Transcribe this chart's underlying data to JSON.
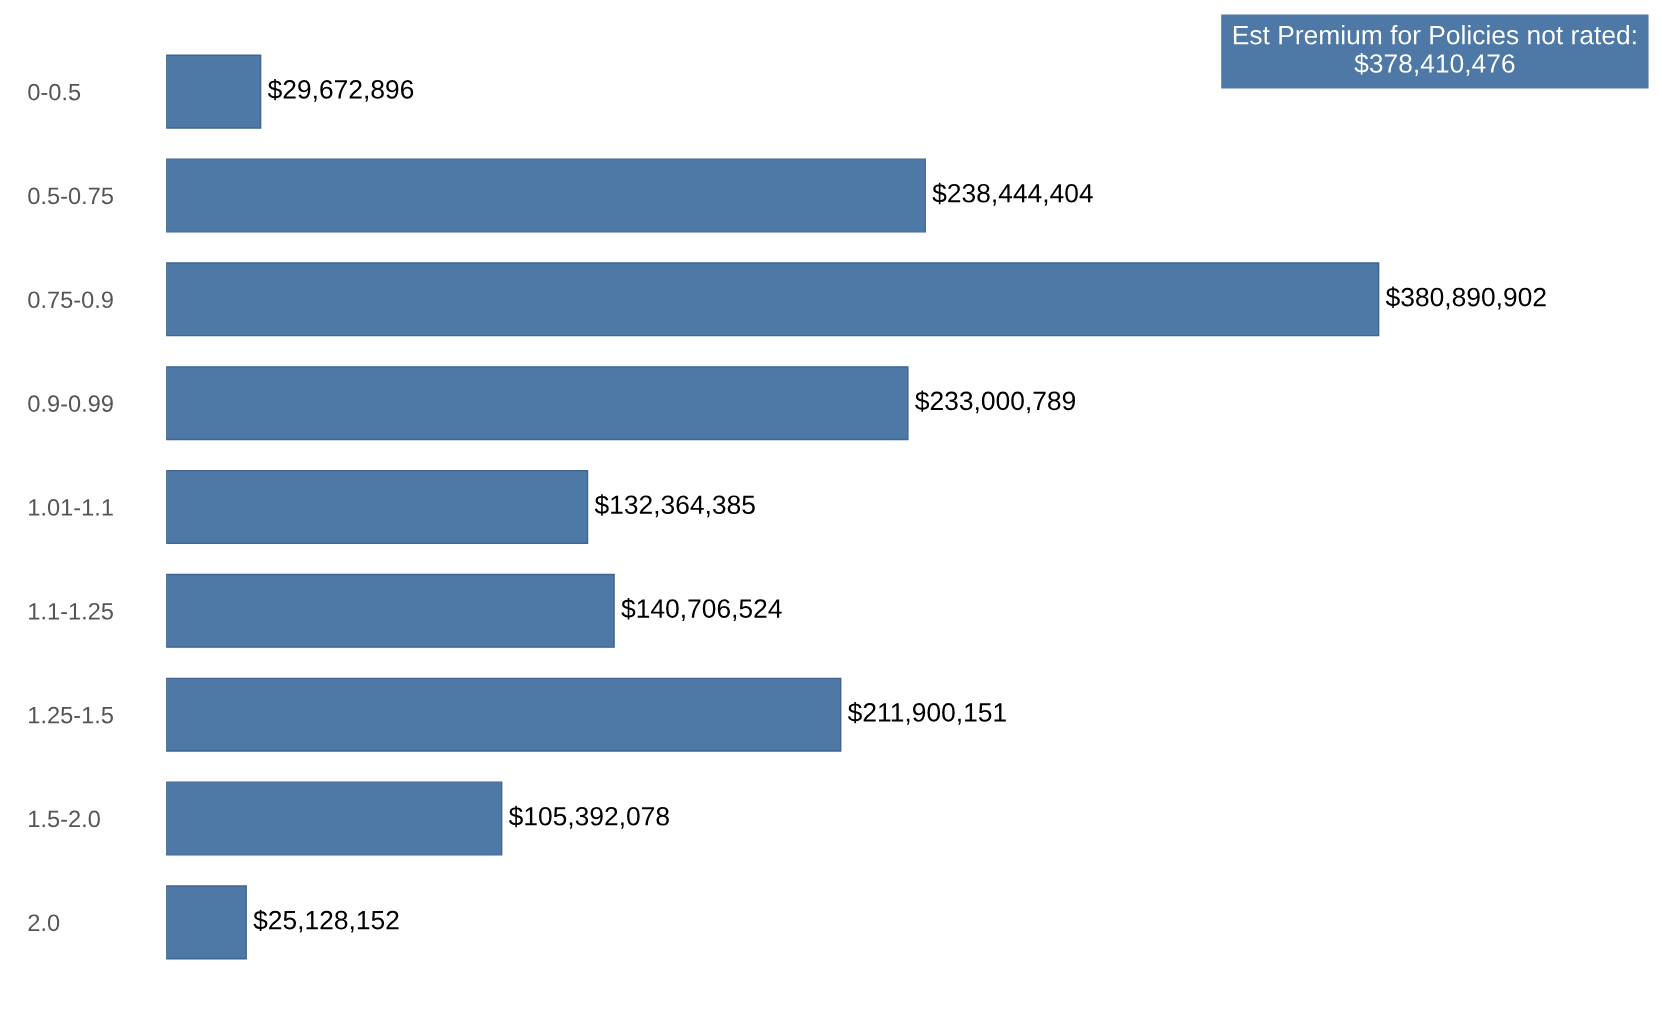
{
  "chart_data": {
    "type": "bar",
    "orientation": "horizontal",
    "categories": [
      "0-0.5",
      "0.5-0.75",
      "0.75-0.9",
      "0.9-0.99",
      "1.01-1.1",
      "1.1-1.25",
      "1.25-1.5",
      "1.5-2.0",
      "2.0"
    ],
    "values": [
      29672896,
      238444404,
      380890902,
      233000789,
      132364385,
      140706524,
      211900151,
      105392078,
      25128152
    ],
    "value_labels": [
      "$29,672,896",
      "$238,444,404",
      "$380,890,902",
      "$233,000,789",
      "$132,364,385",
      "$140,706,524",
      "$211,900,151",
      "$105,392,078",
      "$25,128,152"
    ],
    "color": "#4e78a6",
    "annotations": [
      "Est Premium for Policies not rated:\n$378,410,476"
    ],
    "grid": false,
    "legend": false
  }
}
